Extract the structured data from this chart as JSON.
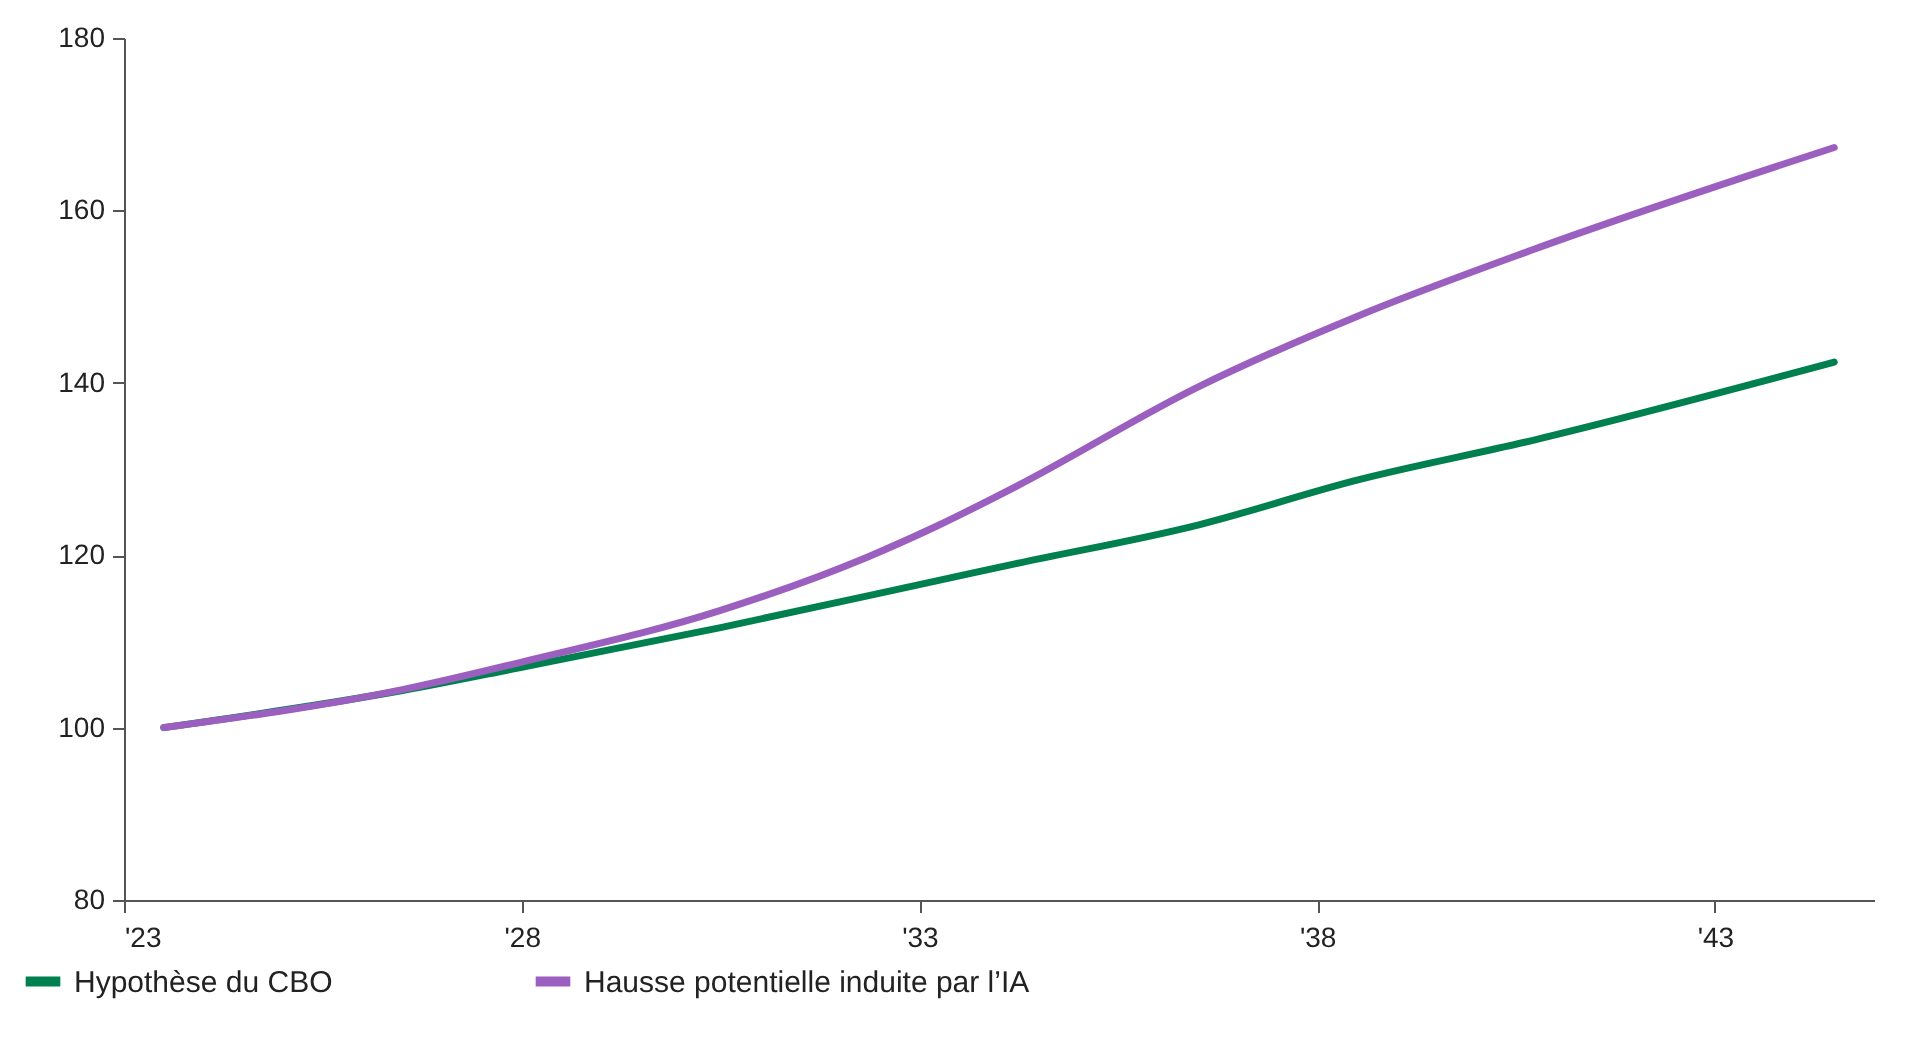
{
  "chart_data": {
    "type": "line",
    "series": [
      {
        "name": "Hypothèse du CBO",
        "color": "#00804f",
        "x": [
          2023.5,
          2026.5,
          2028,
          2030.5,
          2033.2,
          2034.2,
          2036.5,
          2038.5,
          2040.7,
          2044.5
        ],
        "values": [
          100,
          104.3,
          107,
          111.6,
          117,
          119,
          123.5,
          128.7,
          133.3,
          142.4
        ]
      },
      {
        "name": "Hausse potentielle induite par l’IA",
        "color": "#9b5fc0",
        "x": [
          2023.5,
          2026.5,
          2028,
          2030.5,
          2032.35,
          2033.2,
          2034.2,
          2036.5,
          2038.5,
          2040.7,
          2044.5
        ],
        "values": [
          100,
          104.4,
          107.6,
          113.6,
          119.8,
          123.3,
          127.9,
          139.5,
          147.7,
          155.4,
          167.3
        ]
      }
    ],
    "xlim": [
      2023,
      2045
    ],
    "xticks": [
      {
        "value": 2023,
        "label": "'23"
      },
      {
        "value": 2028,
        "label": "'28"
      },
      {
        "value": 2033,
        "label": "'33"
      },
      {
        "value": 2038,
        "label": "'38"
      },
      {
        "value": 2043,
        "label": "'43"
      }
    ],
    "ylim": [
      80,
      180
    ],
    "yticks": [
      80,
      100,
      120,
      140,
      160,
      180
    ],
    "grid": false,
    "legend": "bottom left",
    "marker": "none",
    "line_style": "solid"
  }
}
